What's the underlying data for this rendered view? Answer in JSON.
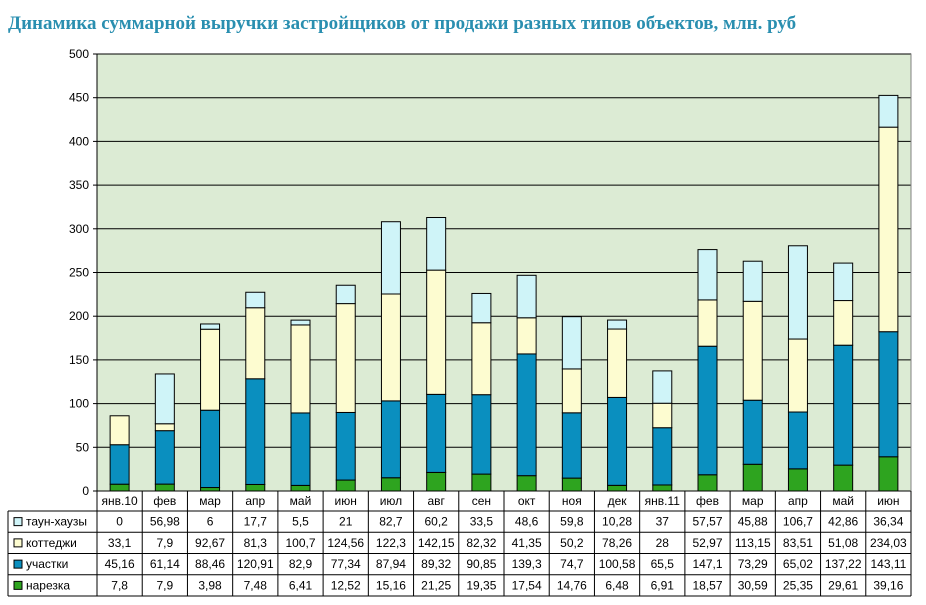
{
  "colors": {
    "plot_bg": "#dcebd4",
    "нарезка": "#2ea41f",
    "участки": "#0a8fbf",
    "коттеджи": "#fdfcd0",
    "таун-хаузы": "#cff4f8"
  },
  "chart_data": {
    "type": "bar",
    "stacked": true,
    "title": "Динамика суммарной выручки застройщиков от продажи разных типов объектов, млн. руб",
    "xlabel": "",
    "ylabel": "",
    "ylim": [
      0,
      500
    ],
    "yticks": [
      0,
      50,
      100,
      150,
      200,
      250,
      300,
      350,
      400,
      450,
      500
    ],
    "grid": true,
    "legend": "table-left",
    "categories": [
      "янв.10",
      "фев",
      "мар",
      "апр",
      "май",
      "июн",
      "июл",
      "авг",
      "сен",
      "окт",
      "ноя",
      "дек",
      "янв.11",
      "фев",
      "мар",
      "апр",
      "май",
      "июн"
    ],
    "series": [
      {
        "name": "нарезка",
        "values": [
          7.8,
          7.9,
          3.98,
          7.48,
          6.41,
          12.52,
          15.16,
          21.25,
          19.35,
          17.54,
          14.76,
          6.48,
          6.91,
          18.57,
          30.59,
          25.35,
          29.61,
          39.16
        ],
        "labels": [
          "7,8",
          "7,9",
          "3,98",
          "7,48",
          "6,41",
          "12,52",
          "15,16",
          "21,25",
          "19,35",
          "17,54",
          "14,76",
          "6,48",
          "6,91",
          "18,57",
          "30,59",
          "25,35",
          "29,61",
          "39,16"
        ]
      },
      {
        "name": "участки",
        "values": [
          45.16,
          61.14,
          88.46,
          120.91,
          82.9,
          77.34,
          87.94,
          89.32,
          90.85,
          139.3,
          74.7,
          100.58,
          65.5,
          147.1,
          73.29,
          65.02,
          137.22,
          143.11
        ],
        "labels": [
          "45,16",
          "61,14",
          "88,46",
          "120,91",
          "82,9",
          "77,34",
          "87,94",
          "89,32",
          "90,85",
          "139,3",
          "74,7",
          "100,58",
          "65,5",
          "147,1",
          "73,29",
          "65,02",
          "137,22",
          "143,11"
        ]
      },
      {
        "name": "коттеджи",
        "values": [
          33.1,
          7.9,
          92.67,
          81.3,
          100.7,
          124.56,
          122.3,
          142.15,
          82.32,
          41.35,
          50.2,
          78.26,
          28,
          52.97,
          113.15,
          83.51,
          51.08,
          234.03
        ],
        "labels": [
          "33,1",
          "7,9",
          "92,67",
          "81,3",
          "100,7",
          "124,56",
          "122,3",
          "142,15",
          "82,32",
          "41,35",
          "50,2",
          "78,26",
          "28",
          "52,97",
          "113,15",
          "83,51",
          "51,08",
          "234,03"
        ]
      },
      {
        "name": "таун-хаузы",
        "values": [
          0,
          56.98,
          6,
          17.7,
          5.5,
          21,
          82.7,
          60.2,
          33.5,
          48.6,
          59.8,
          10.28,
          37,
          57.57,
          45.88,
          106.7,
          42.86,
          36.34
        ],
        "labels": [
          "0",
          "56,98",
          "6",
          "17,7",
          "5,5",
          "21",
          "82,7",
          "60,2",
          "33,5",
          "48,6",
          "59,8",
          "10,28",
          "37",
          "57,57",
          "45,88",
          "106,7",
          "42,86",
          "36,34"
        ]
      }
    ],
    "table_row_order": [
      "таун-хаузы",
      "коттеджи",
      "участки",
      "нарезка"
    ]
  }
}
